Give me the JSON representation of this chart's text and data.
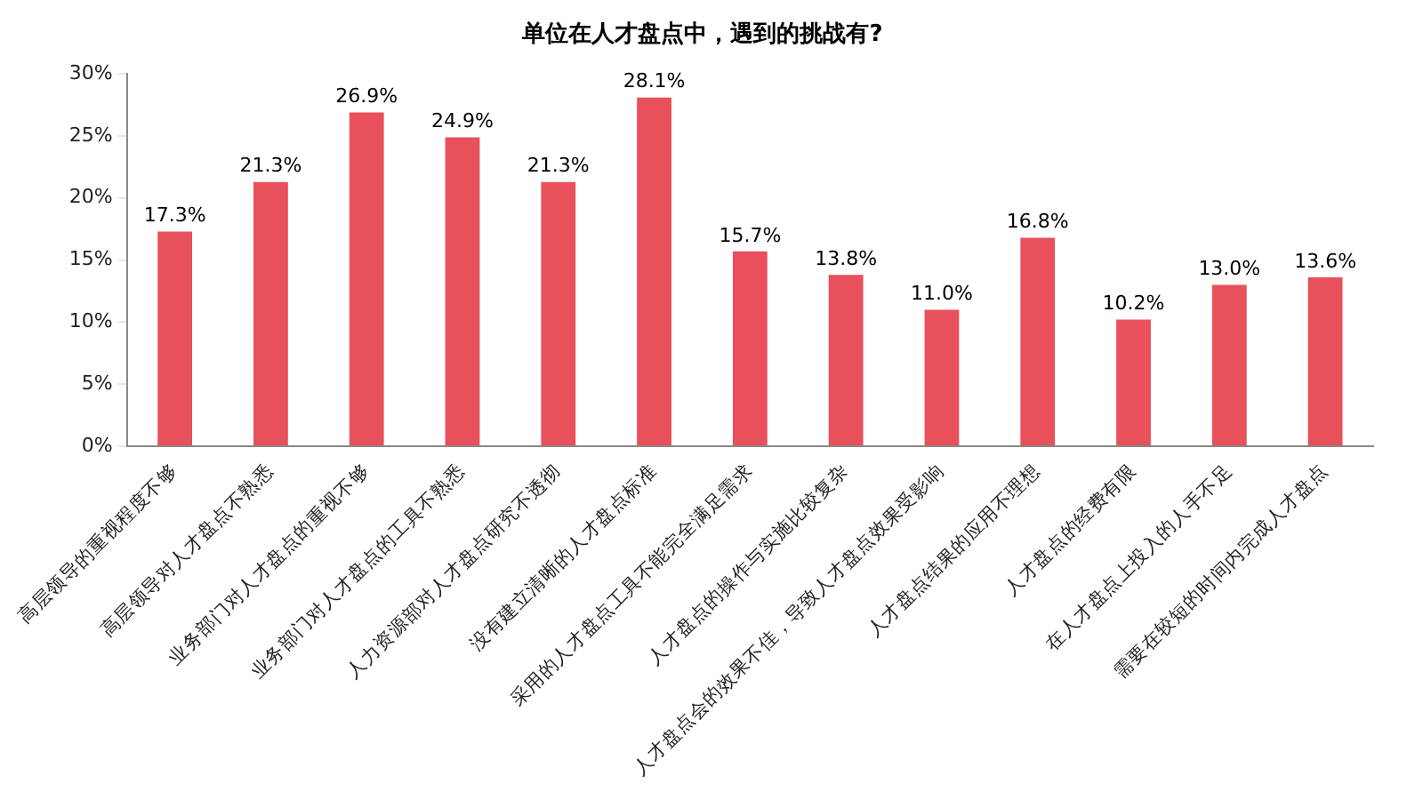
{
  "chart_data": {
    "type": "bar",
    "title": "单位在人才盘点中，遇到的挑战有?",
    "categories": [
      "高层领导的重视程度不够",
      "高层领导对人才盘点不熟悉",
      "业务部门对人才盘点的重视不够",
      "业务部门对人才盘点的工具不熟悉",
      "人力资源部对人才盘点研究不透彻",
      "没有建立清晰的人才盘点标准",
      "采用的人才盘点工具不能完全满足需求",
      "人才盘点的操作与实施比较复杂",
      "人才盘点会的效果不佳，导致人才盘点效果受影响",
      "人才盘点结果的应用不理想",
      "人才盘点的经费有限",
      "在人才盘点上投入的人手不足",
      "需要在较短的时间内完成人才盘点"
    ],
    "values": [
      17.3,
      21.3,
      26.9,
      24.9,
      21.3,
      28.1,
      15.7,
      13.8,
      11.0,
      16.8,
      10.2,
      13.0,
      13.6
    ],
    "value_labels": [
      "17.3%",
      "21.3%",
      "26.9%",
      "24.9%",
      "21.3%",
      "28.1%",
      "15.7%",
      "13.8%",
      "11.0%",
      "16.8%",
      "10.2%",
      "13.0%",
      "13.6%"
    ],
    "color": "#e8505b",
    "ylim": [
      0,
      30
    ],
    "yticks": [
      {
        "value": 0,
        "label": "0%"
      },
      {
        "value": 5,
        "label": "5%"
      },
      {
        "value": 10,
        "label": "10%"
      },
      {
        "value": 15,
        "label": "15%"
      },
      {
        "value": 20,
        "label": "20%"
      },
      {
        "value": 25,
        "label": "25%"
      },
      {
        "value": 30,
        "label": "30%"
      }
    ],
    "grid": false,
    "legend": false
  }
}
